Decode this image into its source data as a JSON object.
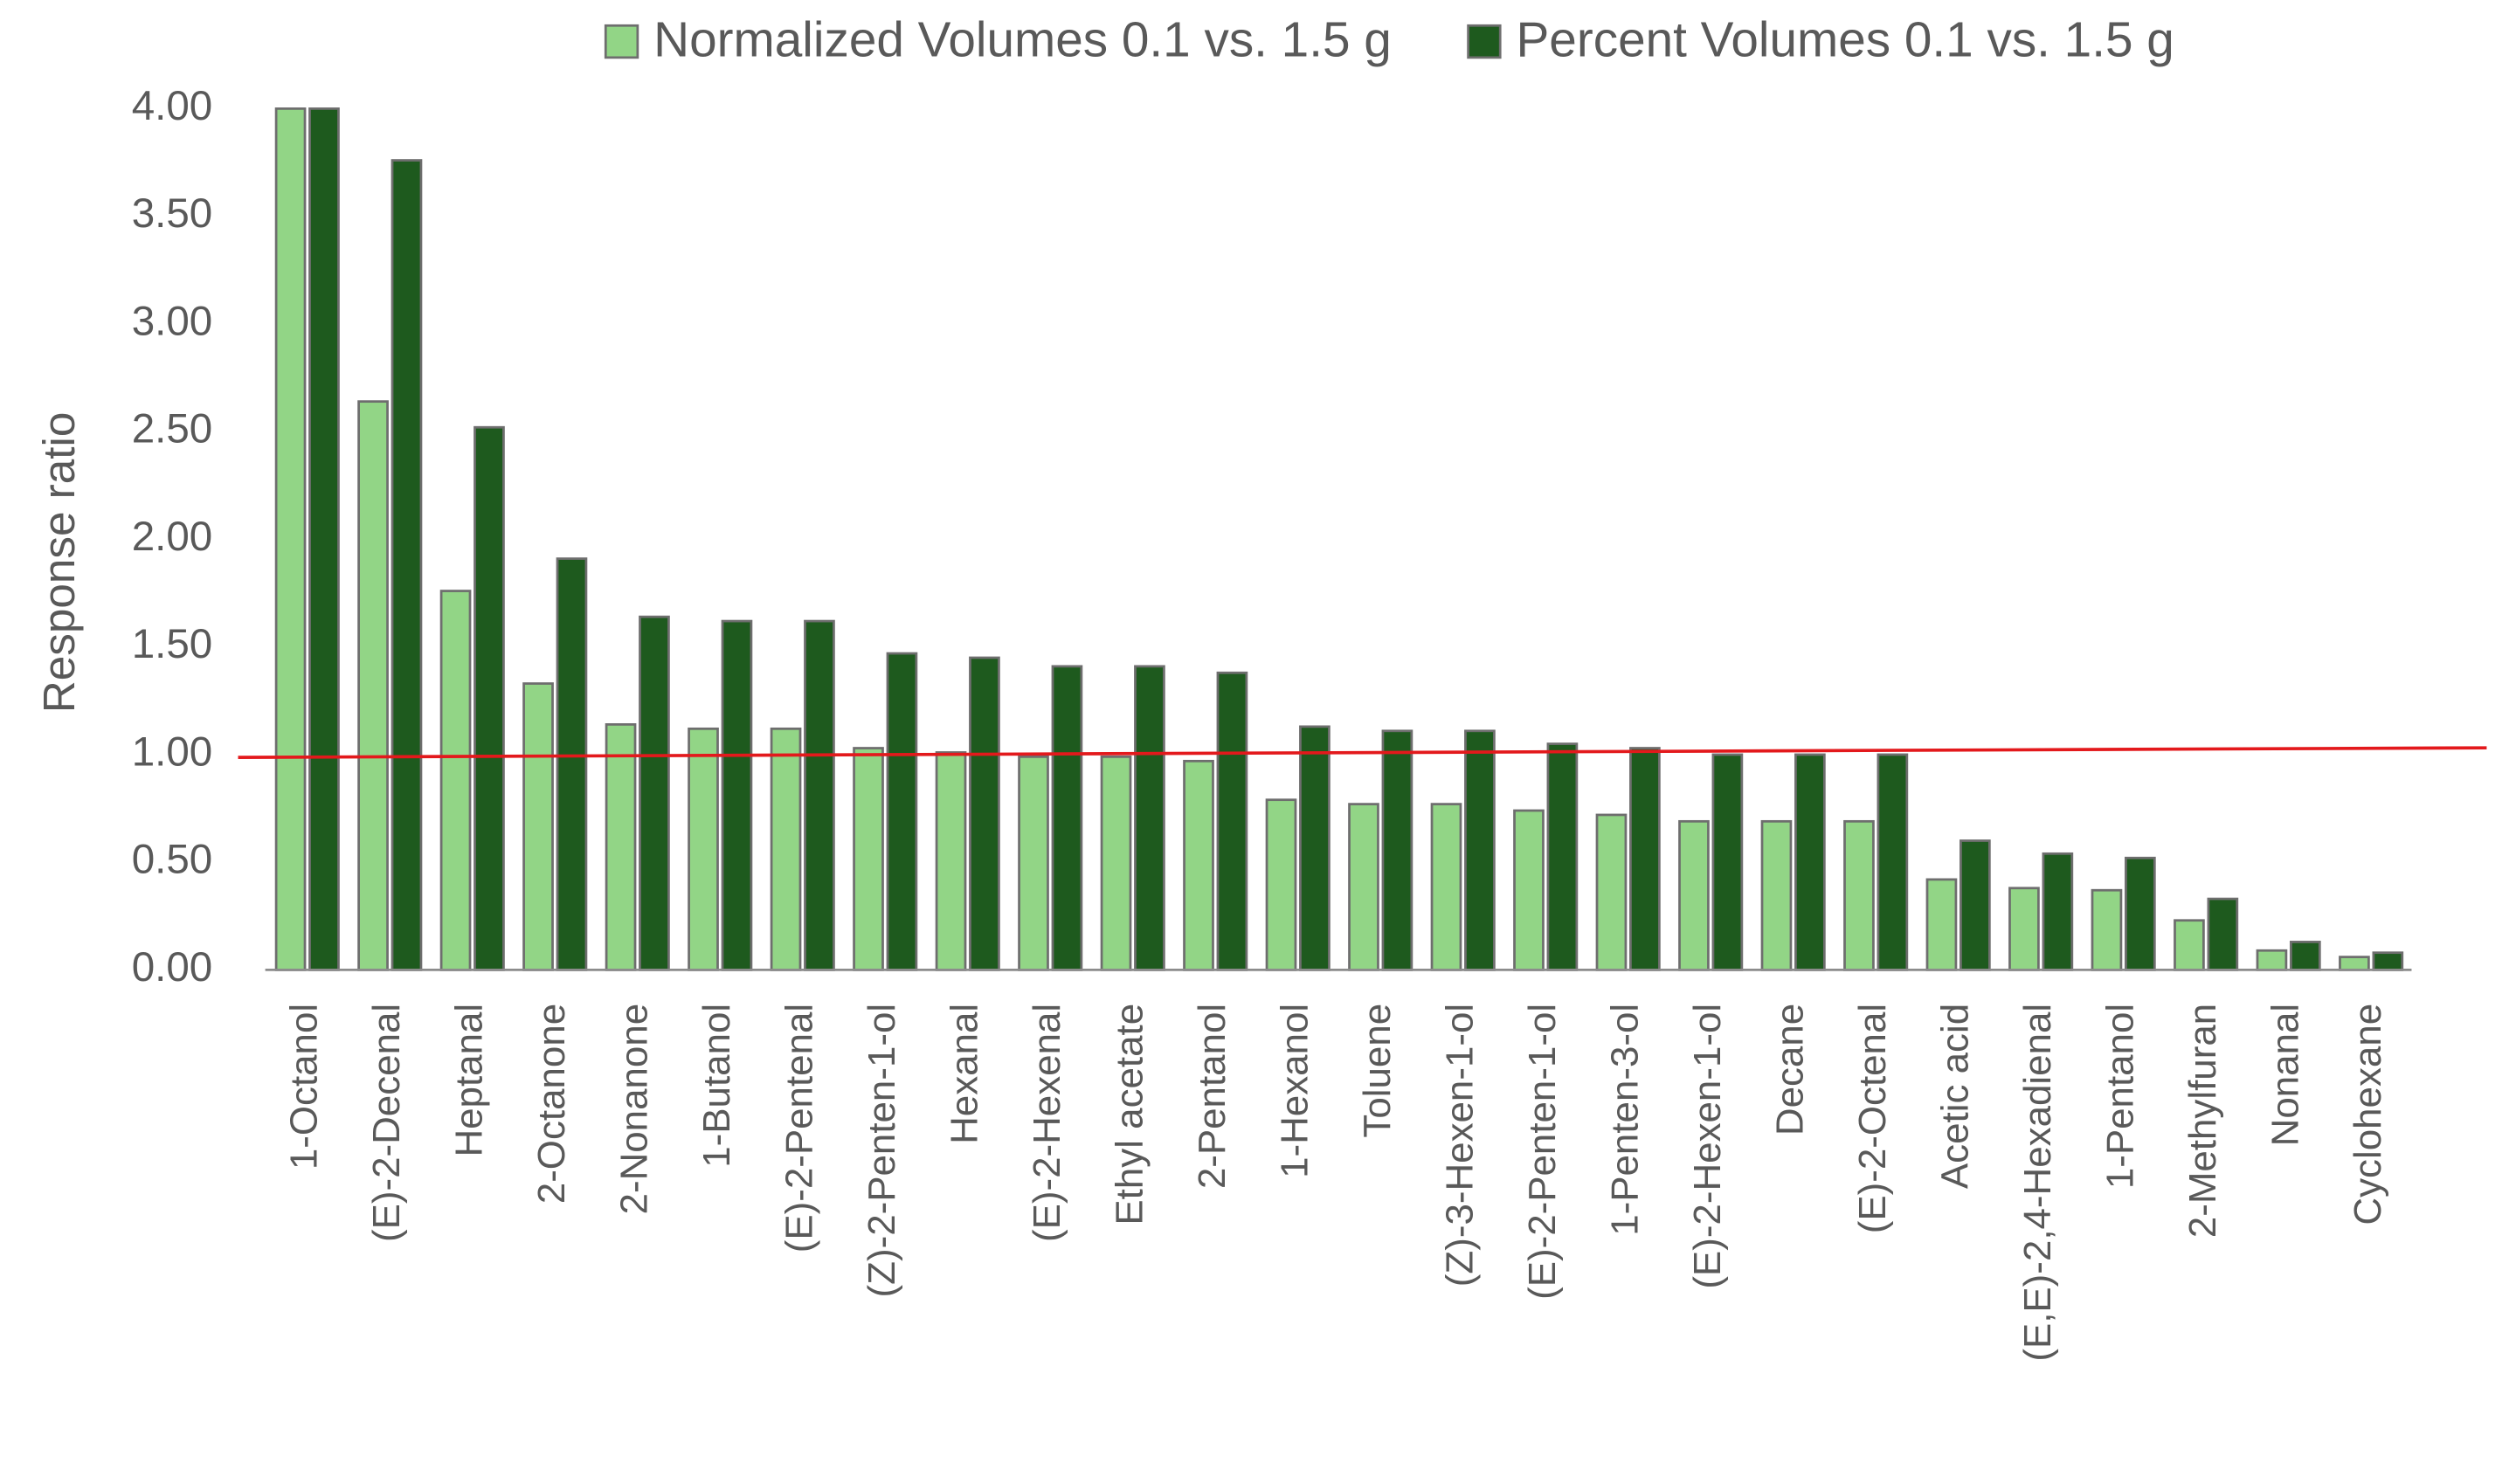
{
  "chart_data": {
    "type": "bar",
    "y_label": "Response ratio",
    "categories": [
      "1-Octanol",
      "(E)-2-Decenal",
      "Heptanal",
      "2-Octanone",
      "2-Nonanone",
      "1-Butanol",
      "(E)-2-Pentenal",
      "(Z)-2-Penten-1-ol",
      "Hexanal",
      "(E)-2-Hexenal",
      "Ethyl acetate",
      "2-Pentanol",
      "1-Hexanol",
      "Toluene",
      "(Z)-3-Hexen-1-ol",
      "(E)-2-Penten-1-ol",
      "1-Penten-3-ol",
      "(E)-2-Hexen-1-ol",
      "Decane",
      "(E)-2-Octenal",
      "Acetic acid",
      "(E,E)-2,4-Hexadienal",
      "1-Pentanol",
      "2-Methylfuran",
      "Nonanal",
      "Cyclohexane"
    ],
    "series": [
      {
        "name": "Normalized Volumes 0.1 vs. 1.5 g",
        "color": "#92d586",
        "values": [
          4.0,
          2.64,
          1.76,
          1.33,
          1.14,
          1.12,
          1.12,
          1.03,
          1.01,
          0.99,
          0.99,
          0.97,
          0.79,
          0.77,
          0.77,
          0.74,
          0.72,
          0.69,
          0.69,
          0.69,
          0.42,
          0.38,
          0.37,
          0.23,
          0.09,
          0.06
        ]
      },
      {
        "name": "Percent Volumes 0.1 vs. 1.5 g",
        "color": "#1e5a1e",
        "values": [
          4.0,
          3.76,
          2.52,
          1.91,
          1.64,
          1.62,
          1.62,
          1.47,
          1.45,
          1.41,
          1.41,
          1.38,
          1.13,
          1.11,
          1.11,
          1.05,
          1.03,
          1.0,
          1.0,
          1.0,
          0.6,
          0.54,
          0.52,
          0.33,
          0.13,
          0.08
        ]
      }
    ],
    "ylim": [
      0,
      4
    ],
    "yticks": [
      {
        "value": 0,
        "label": "0.00"
      },
      {
        "value": 0.5,
        "label": "0.50"
      },
      {
        "value": 1,
        "label": "1.00"
      },
      {
        "value": 1.5,
        "label": "1.50"
      },
      {
        "value": 2,
        "label": "2.00"
      },
      {
        "value": 2.5,
        "label": "2.50"
      },
      {
        "value": 3,
        "label": "3.00"
      },
      {
        "value": 3.5,
        "label": "3.50"
      },
      {
        "value": 4,
        "label": "4.00"
      }
    ],
    "grid": false,
    "legend": "top"
  }
}
